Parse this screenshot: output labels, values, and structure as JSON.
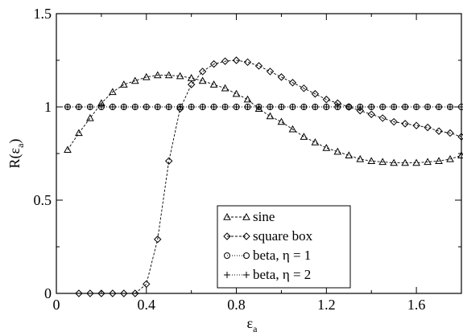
{
  "chart_data": {
    "type": "line",
    "xlabel": "ε",
    "xlabel_sub": "a",
    "ylabel": "R(ε",
    "ylabel_sub": "a",
    "ylabel_close": ")",
    "xlim": [
      0,
      1.8
    ],
    "ylim": [
      0,
      1.5
    ],
    "xticks": [
      0,
      0.4,
      0.8,
      1.2,
      1.6
    ],
    "xtick_labels": [
      "0",
      "0.4",
      "0.8",
      "1.2",
      "1.6"
    ],
    "yticks": [
      0,
      0.5,
      1,
      1.5
    ],
    "ytick_labels": [
      "0",
      "0.5",
      "1",
      "1.5"
    ],
    "grid": false,
    "legend_position": "bottom-center",
    "series": [
      {
        "name": "sine",
        "marker": "triangle",
        "line": "dashed",
        "x": [
          0.05,
          0.1,
          0.15,
          0.2,
          0.25,
          0.3,
          0.35,
          0.4,
          0.45,
          0.5,
          0.55,
          0.6,
          0.65,
          0.7,
          0.75,
          0.8,
          0.85,
          0.9,
          0.95,
          1.0,
          1.05,
          1.1,
          1.15,
          1.2,
          1.25,
          1.3,
          1.35,
          1.4,
          1.45,
          1.5,
          1.55,
          1.6,
          1.65,
          1.7,
          1.75,
          1.8
        ],
        "y": [
          0.77,
          0.86,
          0.94,
          1.02,
          1.08,
          1.12,
          1.14,
          1.16,
          1.17,
          1.17,
          1.165,
          1.155,
          1.14,
          1.12,
          1.1,
          1.07,
          1.04,
          0.99,
          0.95,
          0.92,
          0.88,
          0.84,
          0.81,
          0.78,
          0.76,
          0.74,
          0.72,
          0.71,
          0.705,
          0.7,
          0.7,
          0.7,
          0.705,
          0.71,
          0.72,
          0.74
        ]
      },
      {
        "name": "square box",
        "marker": "diamond",
        "line": "dashed",
        "x": [
          0.1,
          0.15,
          0.2,
          0.25,
          0.3,
          0.35,
          0.4,
          0.45,
          0.5,
          0.55,
          0.6,
          0.65,
          0.7,
          0.75,
          0.8,
          0.85,
          0.9,
          0.95,
          1.0,
          1.05,
          1.1,
          1.15,
          1.2,
          1.25,
          1.3,
          1.35,
          1.4,
          1.45,
          1.5,
          1.55,
          1.6,
          1.65,
          1.7,
          1.75,
          1.8
        ],
        "y": [
          0,
          0,
          0,
          0,
          0,
          0,
          0.05,
          0.29,
          0.71,
          0.99,
          1.12,
          1.19,
          1.23,
          1.245,
          1.25,
          1.24,
          1.22,
          1.19,
          1.16,
          1.13,
          1.1,
          1.07,
          1.04,
          1.02,
          1.0,
          0.98,
          0.96,
          0.94,
          0.92,
          0.91,
          0.9,
          0.89,
          0.87,
          0.86,
          0.84
        ]
      },
      {
        "name": "beta, η = 1",
        "marker": "circle",
        "line": "dotted",
        "x": [
          0.05,
          0.1,
          0.15,
          0.2,
          0.25,
          0.3,
          0.35,
          0.4,
          0.45,
          0.5,
          0.55,
          0.6,
          0.65,
          0.7,
          0.75,
          0.8,
          0.85,
          0.9,
          0.95,
          1.0,
          1.05,
          1.1,
          1.15,
          1.2,
          1.25,
          1.3,
          1.35,
          1.4,
          1.45,
          1.5,
          1.55,
          1.6,
          1.65,
          1.7,
          1.75,
          1.8
        ],
        "y": [
          1,
          1,
          1,
          1,
          1,
          1,
          1,
          1,
          1,
          1,
          1,
          1,
          1,
          1,
          1,
          1,
          1,
          1,
          1,
          1,
          1,
          1,
          1,
          1,
          1,
          1,
          1,
          1,
          1,
          1,
          1,
          1,
          1,
          1,
          1,
          1
        ]
      },
      {
        "name": "beta, η = 2",
        "marker": "plus",
        "line": "dotted",
        "x": [
          0.05,
          0.1,
          0.15,
          0.2,
          0.25,
          0.3,
          0.35,
          0.4,
          0.45,
          0.5,
          0.55,
          0.6,
          0.65,
          0.7,
          0.75,
          0.8,
          0.85,
          0.9,
          0.95,
          1.0,
          1.05,
          1.1,
          1.15,
          1.2,
          1.25,
          1.3,
          1.35,
          1.4,
          1.45,
          1.5,
          1.55,
          1.6,
          1.65,
          1.7,
          1.75,
          1.8
        ],
        "y": [
          1,
          1,
          1,
          1,
          1,
          1,
          1,
          1,
          1,
          1,
          1,
          1,
          1,
          1,
          1,
          1,
          1,
          1,
          1,
          1,
          1,
          1,
          1,
          1,
          1,
          1,
          1,
          1,
          1,
          1,
          1,
          1,
          1,
          1,
          1,
          1
        ]
      }
    ]
  }
}
